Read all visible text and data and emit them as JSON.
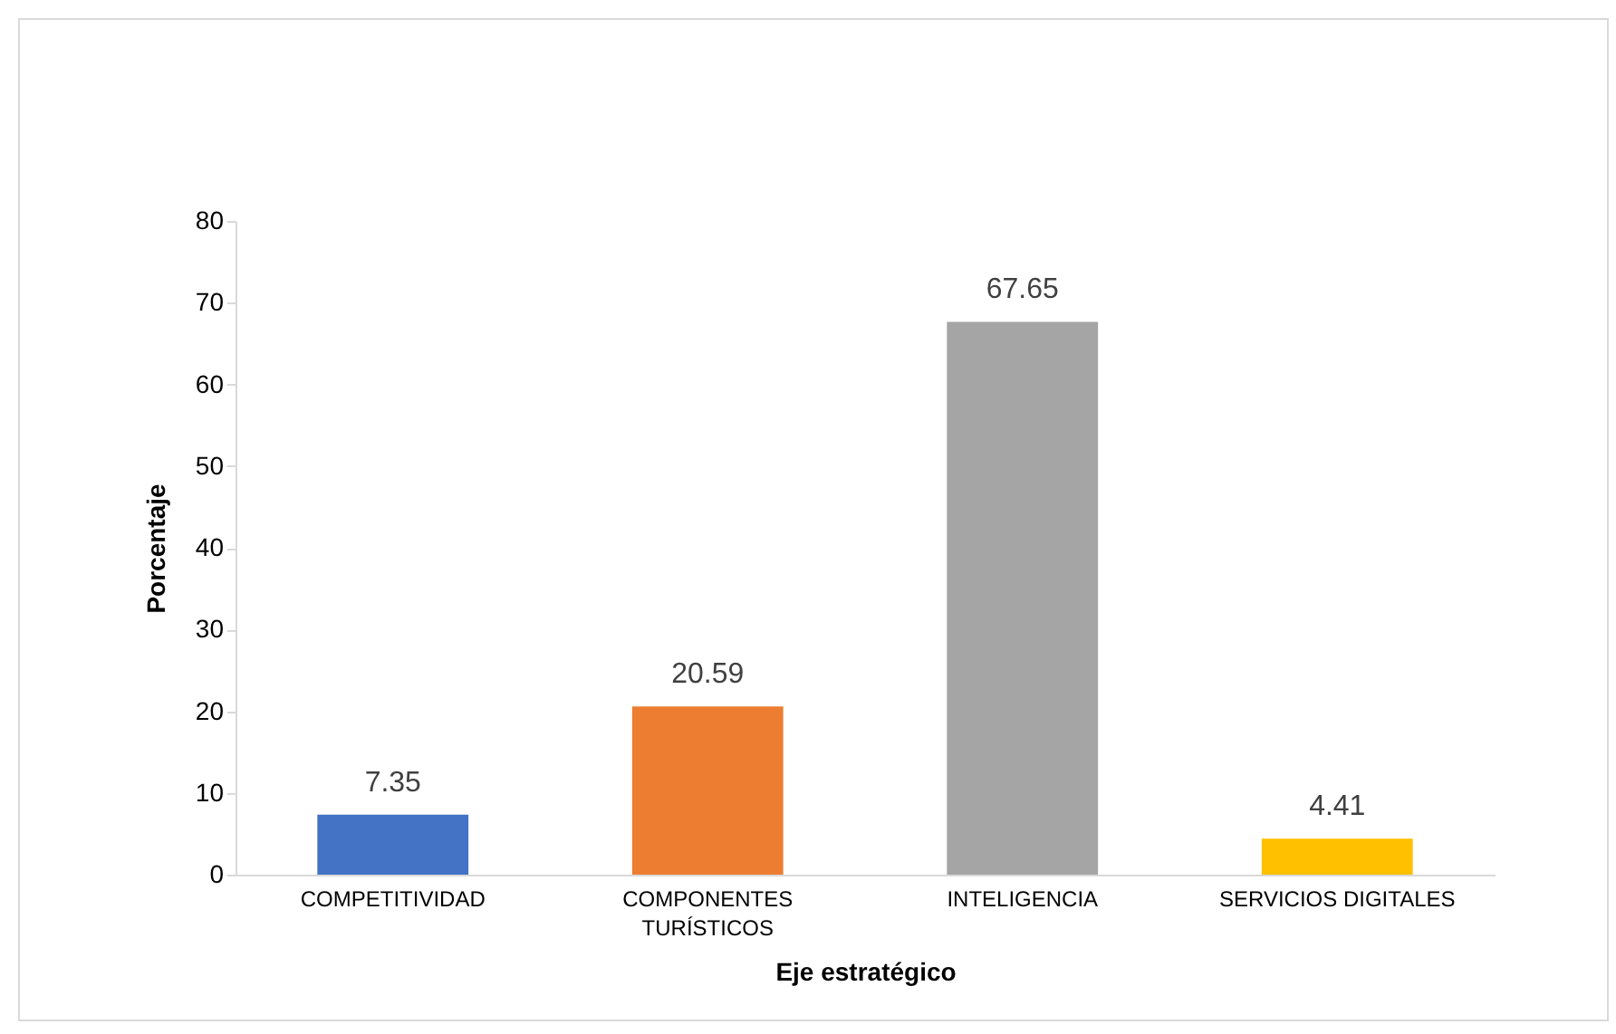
{
  "chart_data": {
    "type": "bar",
    "xlabel": "Eje estratégico",
    "ylabel": "Porcentaje",
    "categories": [
      "COMPETITIVIDAD",
      "COMPONENTES TURÍSTICOS",
      "INTELIGENCIA",
      "SERVICIOS DIGITALES"
    ],
    "values": [
      7.35,
      20.59,
      67.65,
      4.41
    ],
    "colors": [
      "#4472c4",
      "#ed7d31",
      "#a5a5a5",
      "#ffc000"
    ],
    "ylim": [
      0,
      80
    ],
    "yticks": [
      0,
      10,
      20,
      30,
      40,
      50,
      60,
      70,
      80
    ],
    "data_labels": true
  }
}
